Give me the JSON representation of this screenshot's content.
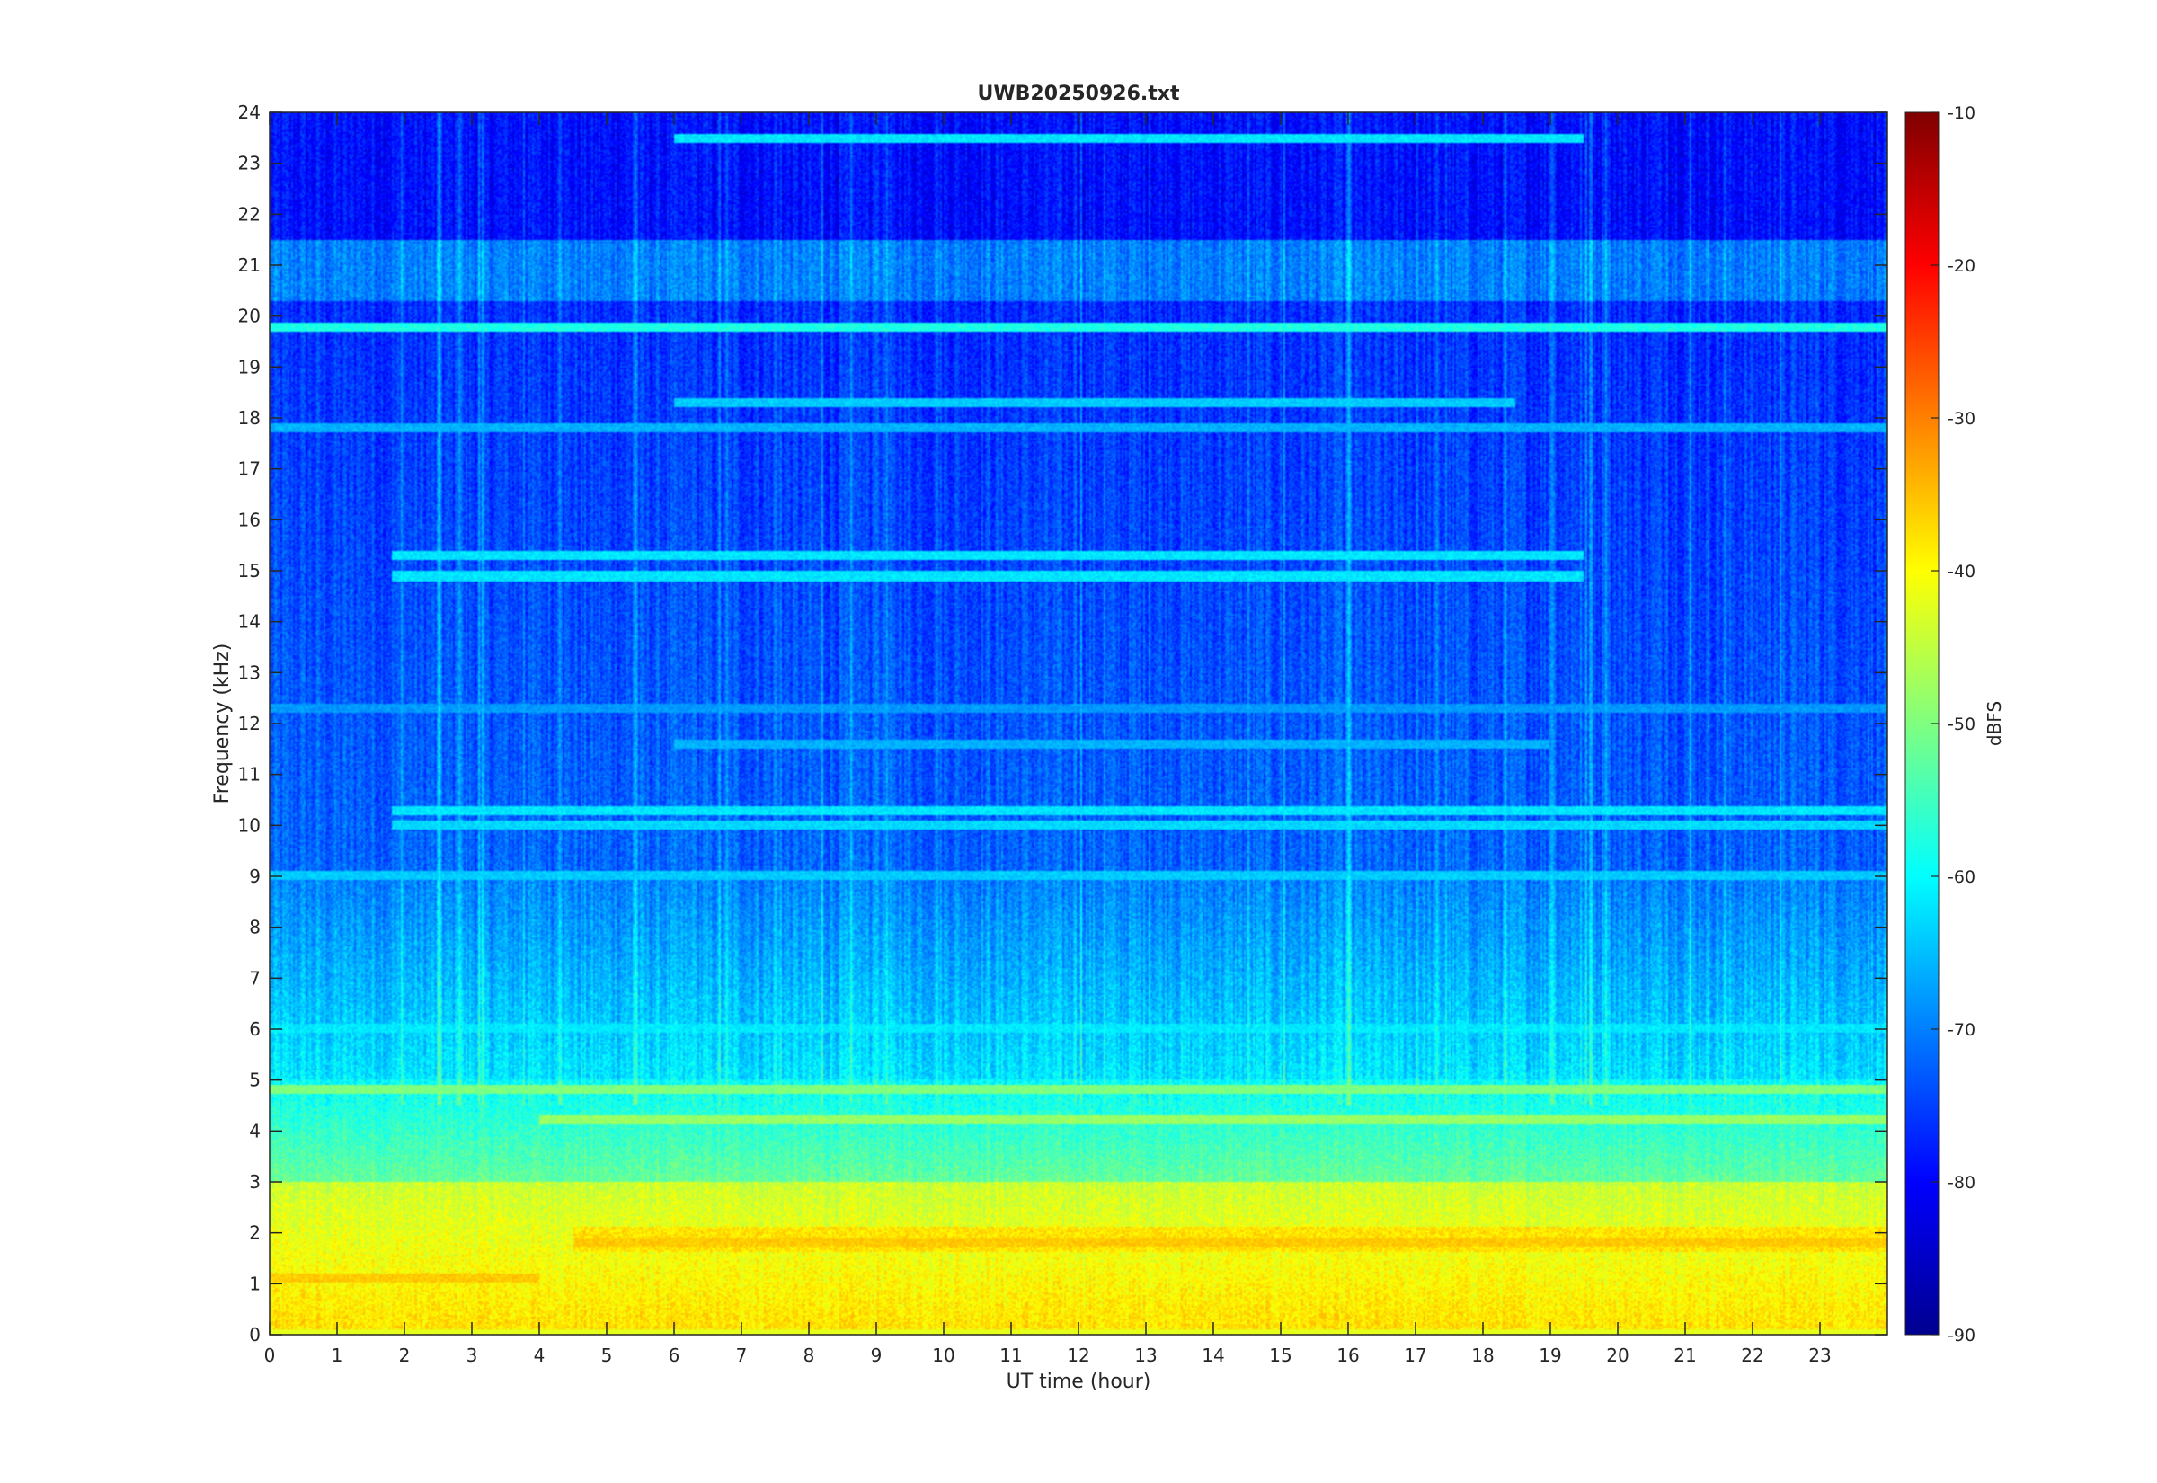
{
  "chart_data": {
    "type": "heatmap",
    "title": "UWB20250926.txt",
    "xlabel": "UT time (hour)",
    "ylabel": "Frequency (kHz)",
    "xlim": [
      0,
      24
    ],
    "ylim": [
      0,
      24
    ],
    "xticks": [
      0,
      1,
      2,
      3,
      4,
      5,
      6,
      7,
      8,
      9,
      10,
      11,
      12,
      13,
      14,
      15,
      16,
      17,
      18,
      19,
      20,
      21,
      22,
      23
    ],
    "yticks": [
      0,
      1,
      2,
      3,
      4,
      5,
      6,
      7,
      8,
      9,
      10,
      11,
      12,
      13,
      14,
      15,
      16,
      17,
      18,
      19,
      20,
      21,
      22,
      23,
      24
    ],
    "colorbar": {
      "label": "dBFS",
      "range": [
        -90,
        -10
      ],
      "ticks": [
        -90,
        -80,
        -70,
        -60,
        -50,
        -40,
        -30,
        -20,
        -10
      ],
      "colormap": "jet"
    },
    "features": {
      "horizontal_lines_khz": [
        {
          "freq": 19.8,
          "from": 0,
          "to": 24,
          "level_dbfs": -58
        },
        {
          "freq": 18.3,
          "from": 6,
          "to": 18.5,
          "level_dbfs": -64
        },
        {
          "freq": 17.8,
          "from": 0,
          "to": 24,
          "level_dbfs": -66
        },
        {
          "freq": 15.3,
          "from": 1.8,
          "to": 19.5,
          "level_dbfs": -62
        },
        {
          "freq": 14.9,
          "from": 1.8,
          "to": 19.5,
          "level_dbfs": -62
        },
        {
          "freq": 12.3,
          "from": 0,
          "to": 24,
          "level_dbfs": -68
        },
        {
          "freq": 11.6,
          "from": 6,
          "to": 19,
          "level_dbfs": -66
        },
        {
          "freq": 10.3,
          "from": 1.8,
          "to": 24,
          "level_dbfs": -62
        },
        {
          "freq": 10.0,
          "from": 1.8,
          "to": 24,
          "level_dbfs": -63
        },
        {
          "freq": 9.0,
          "from": 0,
          "to": 24,
          "level_dbfs": -64
        },
        {
          "freq": 6.0,
          "from": 0,
          "to": 24,
          "level_dbfs": -62
        },
        {
          "freq": 4.8,
          "from": 0,
          "to": 24,
          "level_dbfs": -50
        },
        {
          "freq": 4.2,
          "from": 4,
          "to": 24,
          "level_dbfs": -48
        },
        {
          "freq": 1.8,
          "from": 4.5,
          "to": 24,
          "level_dbfs": -36
        },
        {
          "freq": 1.1,
          "from": 0,
          "to": 4,
          "level_dbfs": -36
        },
        {
          "freq": 23.5,
          "from": 6,
          "to": 19.5,
          "level_dbfs": -62
        }
      ],
      "vertical_lines_hour": [
        2.5,
        2.8,
        4.3,
        5.4,
        19.0,
        19.8,
        16.0
      ]
    }
  }
}
